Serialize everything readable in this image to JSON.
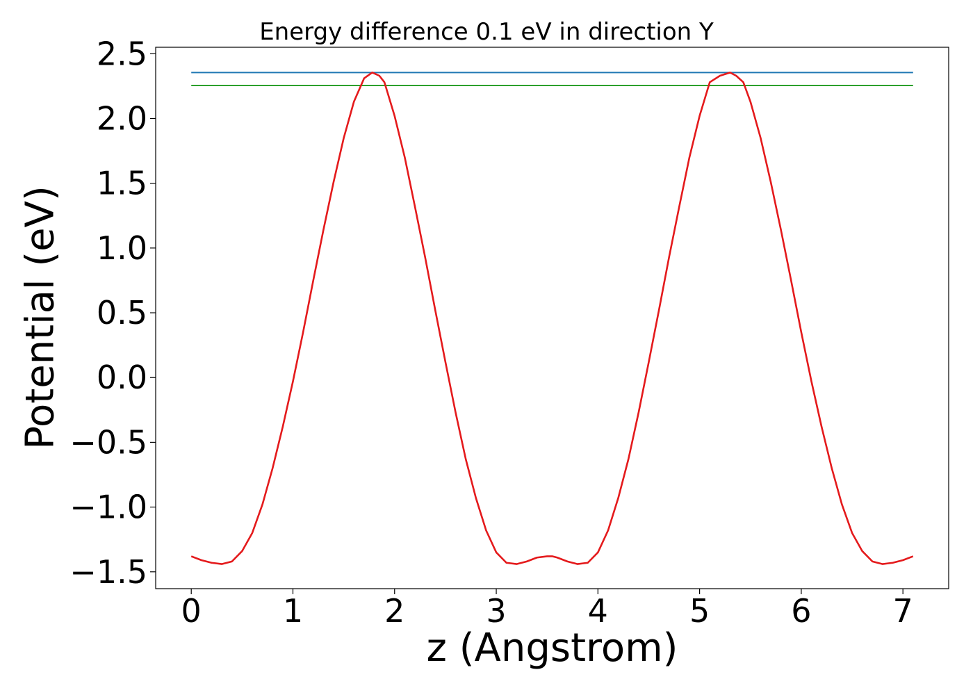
{
  "chart_data": {
    "type": "line",
    "title": "Energy difference 0.1 eV in direction Y",
    "xlabel": "z (Angstrom)",
    "ylabel": "Potential (eV)",
    "xlim": [
      -0.35,
      7.45
    ],
    "ylim": [
      -1.63,
      2.55
    ],
    "grid": false,
    "x_ticks": [
      {
        "value": 0,
        "label": "0"
      },
      {
        "value": 1,
        "label": "1"
      },
      {
        "value": 2,
        "label": "2"
      },
      {
        "value": 3,
        "label": "3"
      },
      {
        "value": 4,
        "label": "4"
      },
      {
        "value": 5,
        "label": "5"
      },
      {
        "value": 6,
        "label": "6"
      },
      {
        "value": 7,
        "label": "7"
      }
    ],
    "y_ticks": [
      {
        "value": 2.5,
        "label": "2.5"
      },
      {
        "value": 2.0,
        "label": "2.0"
      },
      {
        "value": 1.5,
        "label": "1.5"
      },
      {
        "value": 1.0,
        "label": "1.0"
      },
      {
        "value": 0.5,
        "label": "0.5"
      },
      {
        "value": 0.0,
        "label": "0.0"
      },
      {
        "value": -0.5,
        "label": "−0.5"
      },
      {
        "value": -1.0,
        "label": "−1.0"
      },
      {
        "value": -1.5,
        "label": "−1.5"
      }
    ],
    "series": [
      {
        "color": "#1f77b4",
        "x": [
          0,
          7.1
        ],
        "y": [
          2.355,
          2.355
        ]
      },
      {
        "color": "#2ca02c",
        "x": [
          0,
          7.1
        ],
        "y": [
          2.255,
          2.255
        ]
      },
      {
        "color": "#e41a1c",
        "x": [
          0,
          0.1,
          0.2,
          0.3,
          0.4,
          0.5,
          0.6,
          0.7,
          0.8,
          0.9,
          1.0,
          1.1,
          1.2,
          1.3,
          1.4,
          1.5,
          1.6,
          1.7,
          1.78,
          1.85,
          1.9,
          2.0,
          2.1,
          2.2,
          2.3,
          2.4,
          2.5,
          2.6,
          2.7,
          2.8,
          2.9,
          3.0,
          3.1,
          3.2,
          3.3,
          3.4,
          3.5,
          3.55,
          3.6,
          3.7,
          3.8,
          3.9,
          4.0,
          4.1,
          4.2,
          4.3,
          4.4,
          4.5,
          4.6,
          4.7,
          4.8,
          4.9,
          5.0,
          5.1,
          5.2,
          5.3,
          5.36,
          5.43,
          5.5,
          5.6,
          5.7,
          5.8,
          5.9,
          6.0,
          6.1,
          6.2,
          6.3,
          6.4,
          6.5,
          6.6,
          6.7,
          6.8,
          6.9,
          7.0,
          7.1
        ],
        "y": [
          -1.38,
          -1.41,
          -1.43,
          -1.44,
          -1.42,
          -1.34,
          -1.2,
          -0.98,
          -0.7,
          -0.38,
          -0.03,
          0.35,
          0.75,
          1.14,
          1.51,
          1.85,
          2.13,
          2.31,
          2.355,
          2.33,
          2.28,
          2.02,
          1.7,
          1.32,
          0.93,
          0.52,
          0.12,
          -0.27,
          -0.63,
          -0.93,
          -1.18,
          -1.35,
          -1.43,
          -1.44,
          -1.42,
          -1.39,
          -1.38,
          -1.38,
          -1.39,
          -1.42,
          -1.44,
          -1.43,
          -1.35,
          -1.18,
          -0.93,
          -0.63,
          -0.27,
          0.12,
          0.52,
          0.93,
          1.32,
          1.7,
          2.02,
          2.28,
          2.33,
          2.355,
          2.33,
          2.28,
          2.13,
          1.85,
          1.51,
          1.14,
          0.75,
          0.35,
          -0.03,
          -0.38,
          -0.7,
          -0.98,
          -1.2,
          -1.34,
          -1.42,
          -1.44,
          -1.43,
          -1.41,
          -1.38
        ]
      }
    ]
  }
}
